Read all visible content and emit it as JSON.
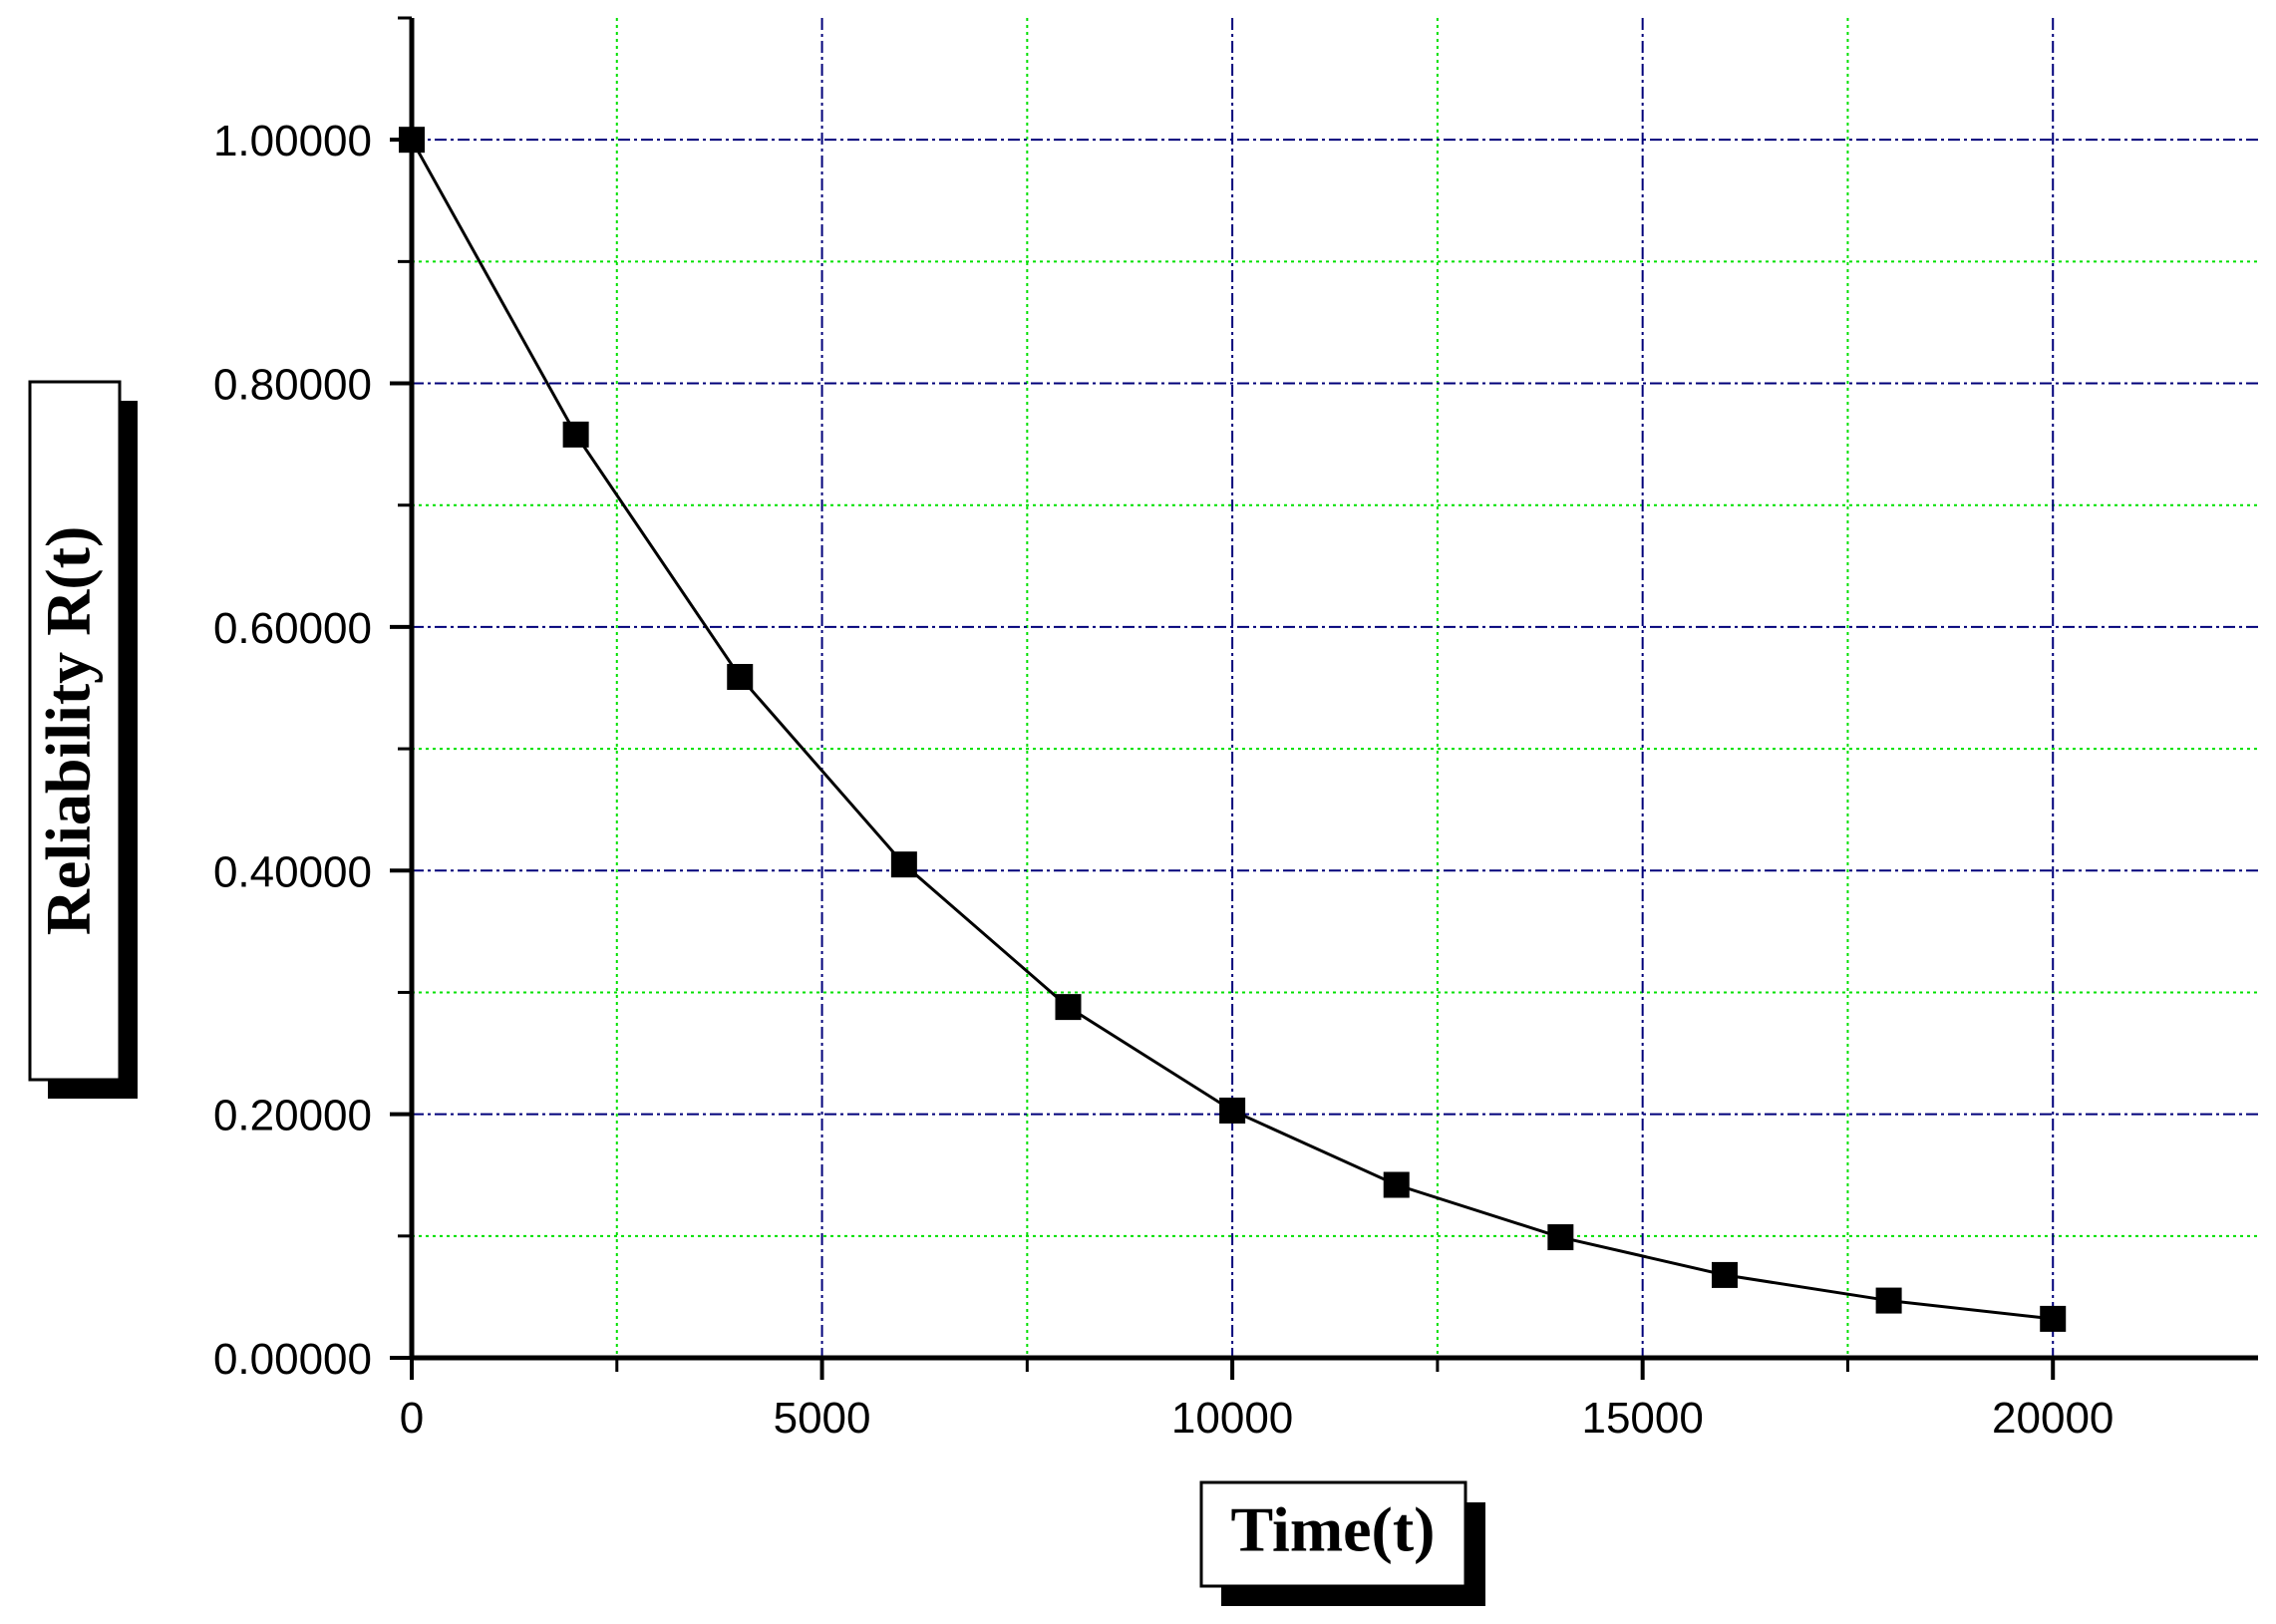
{
  "chart_data": {
    "type": "line",
    "xlabel": "Time(t)",
    "ylabel": "Reliability R(t)",
    "xlim": [
      0,
      22500
    ],
    "ylim": [
      0,
      1.1
    ],
    "x_ticks": [
      0,
      5000,
      10000,
      15000,
      20000
    ],
    "x_tick_labels": [
      "0",
      "5000",
      "10000",
      "15000",
      "20000"
    ],
    "x_minor_grid": [
      2500,
      7500,
      12500,
      17500
    ],
    "y_ticks": [
      0,
      0.2,
      0.4,
      0.6,
      0.8,
      1.0
    ],
    "y_tick_labels": [
      "0.00000",
      "0.20000",
      "0.40000",
      "0.60000",
      "0.80000",
      "1.00000"
    ],
    "y_minor_grid": [
      0.1,
      0.3,
      0.5,
      0.7,
      0.9
    ],
    "grid": true,
    "series": [
      {
        "marker": "square",
        "x": [
          0,
          2000,
          4000,
          6000,
          8000,
          10000,
          12000,
          14000,
          16000,
          18000,
          20000
        ],
        "y": [
          1.0,
          0.758,
          0.559,
          0.405,
          0.288,
          0.203,
          0.142,
          0.099,
          0.068,
          0.047,
          0.032
        ]
      }
    ],
    "colors": {
      "major_grid": "#00007a",
      "minor_grid": "#00e000",
      "line": "#000000",
      "marker": "#000000"
    }
  }
}
